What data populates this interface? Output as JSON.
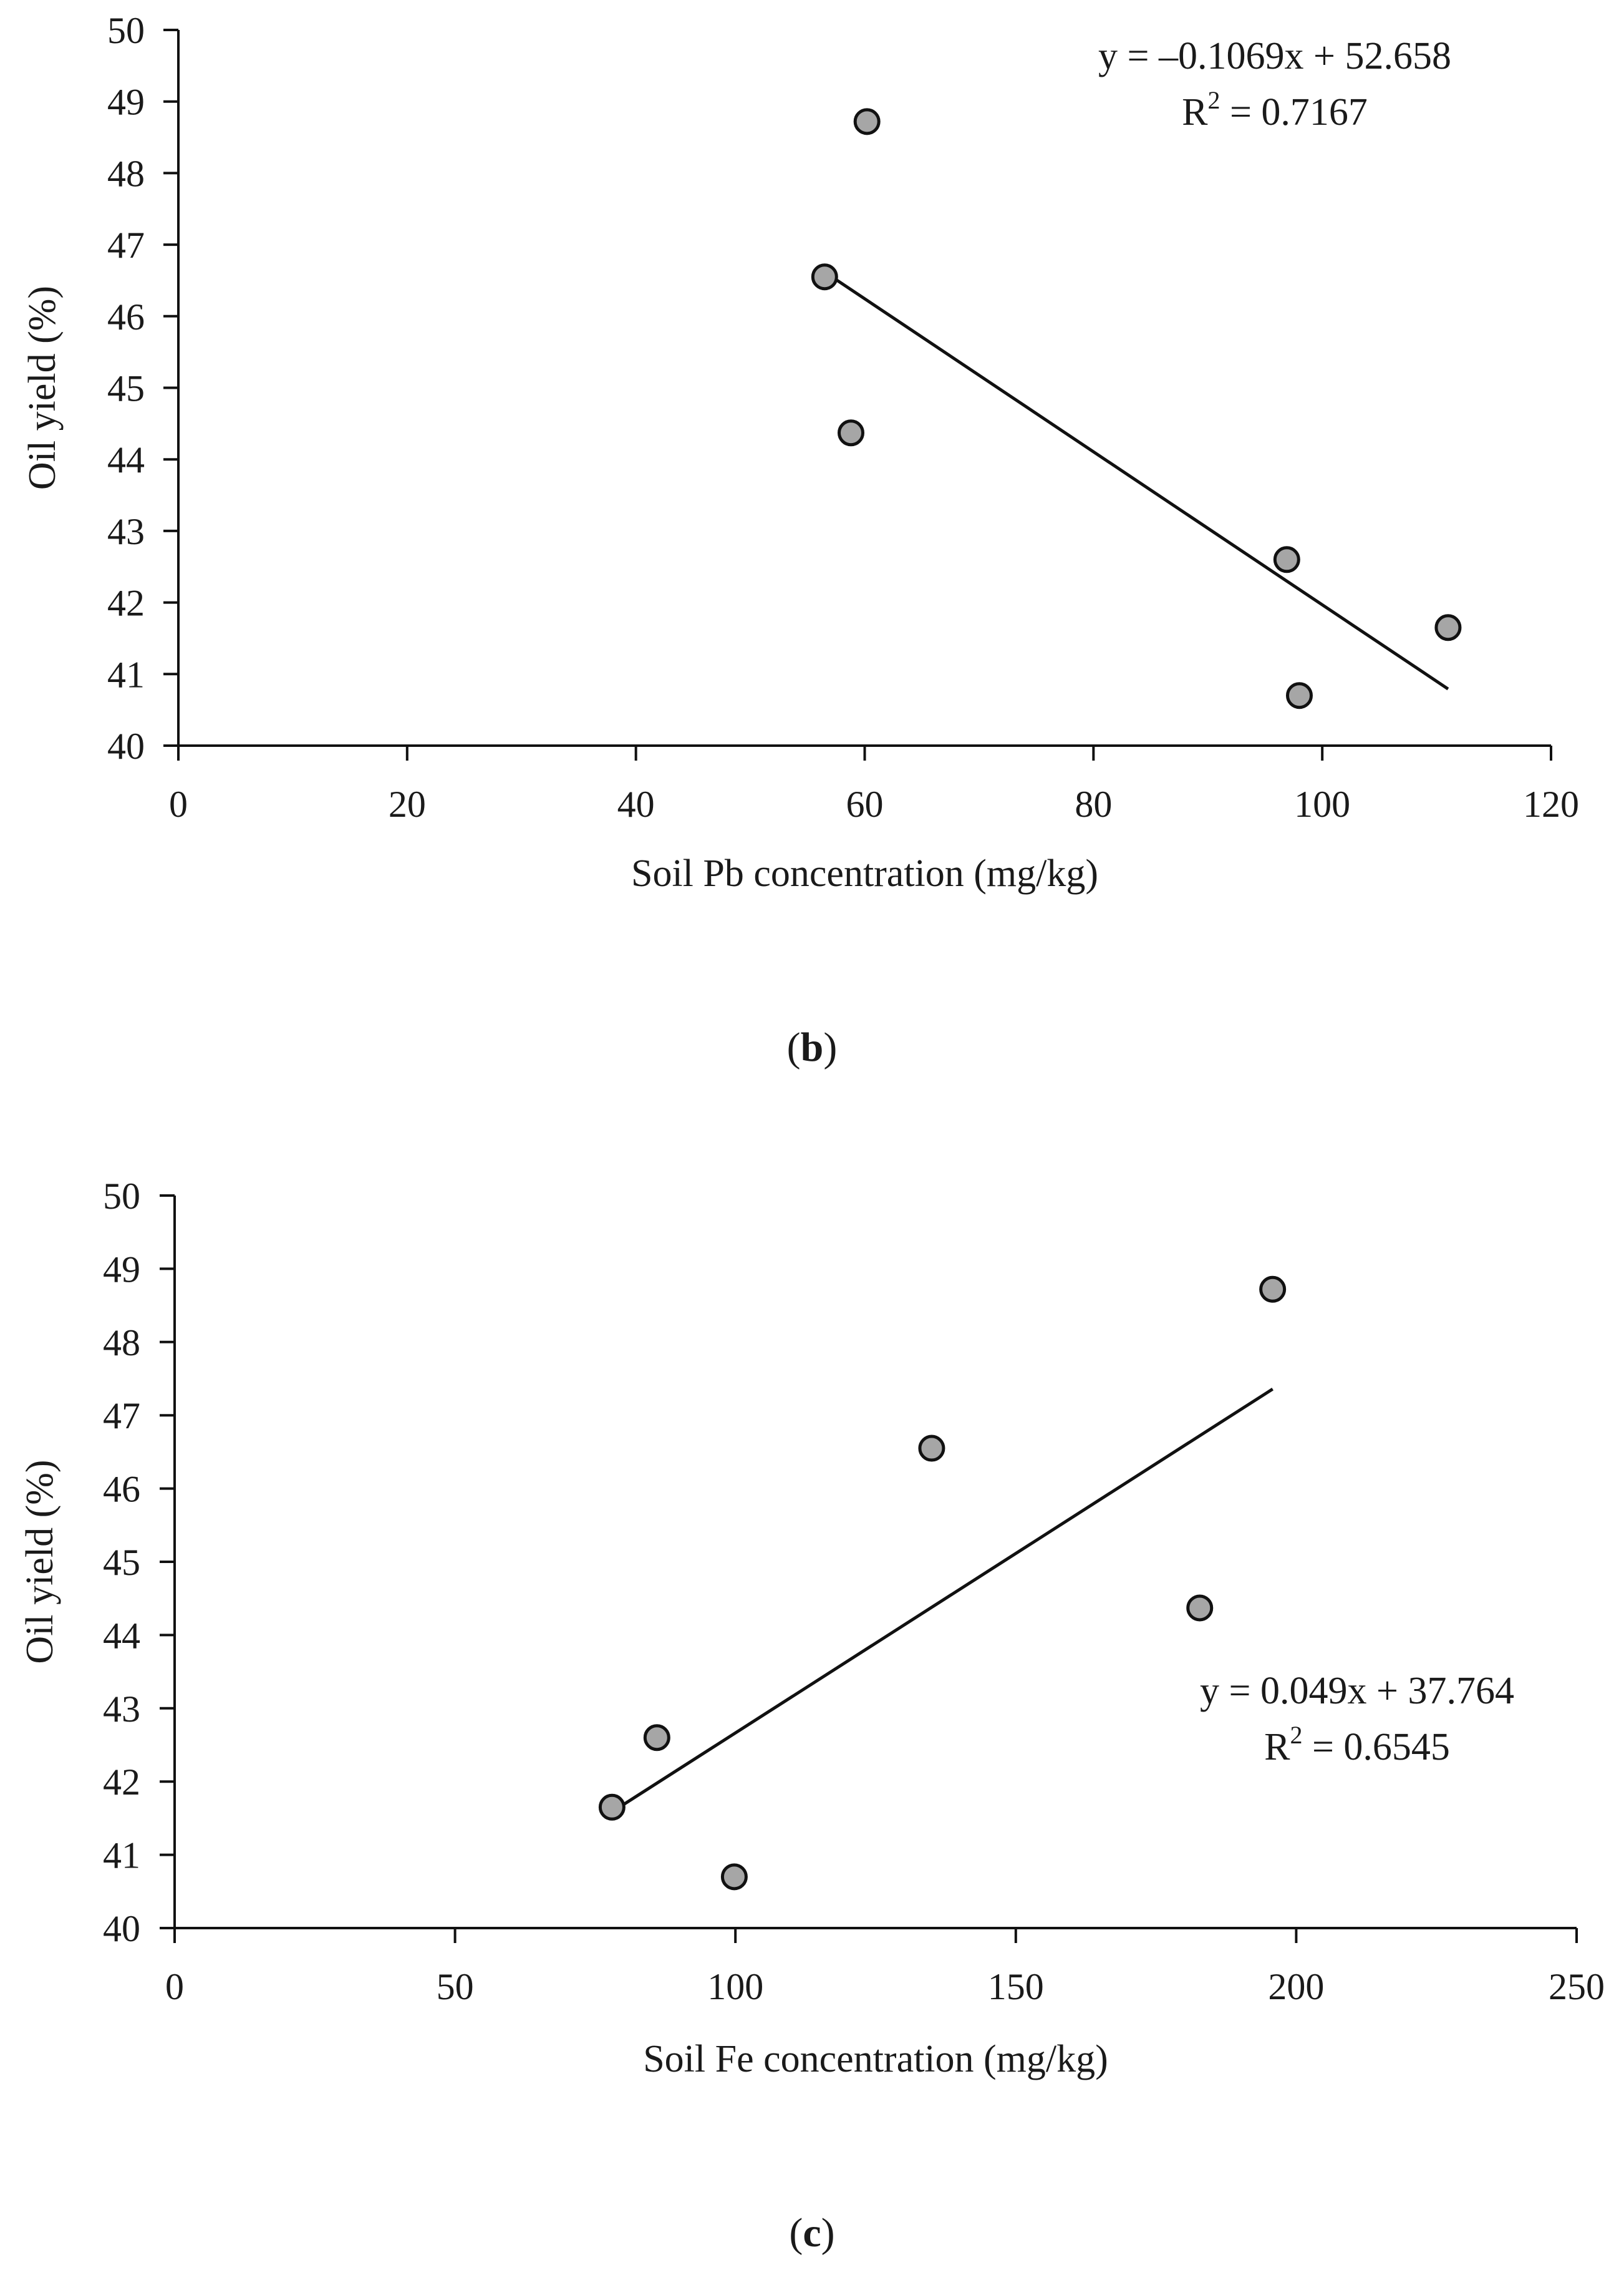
{
  "chart_data": [
    {
      "type": "scatter",
      "panel_label": {
        "open": "(",
        "letter": "b",
        "close": ")"
      },
      "xlabel": "Soil Pb concentration (mg/kg)",
      "ylabel": "Oil yield (%)",
      "xlim": [
        0,
        120
      ],
      "ylim": [
        40,
        50
      ],
      "xticks": [
        0,
        20,
        40,
        60,
        80,
        100,
        120
      ],
      "yticks": [
        40,
        41,
        42,
        43,
        44,
        45,
        46,
        47,
        48,
        49,
        50
      ],
      "points": [
        {
          "x": 56.5,
          "y": 46.55
        },
        {
          "x": 58.8,
          "y": 44.37
        },
        {
          "x": 60.2,
          "y": 48.72
        },
        {
          "x": 96.9,
          "y": 42.6
        },
        {
          "x": 98.0,
          "y": 40.7
        },
        {
          "x": 111.0,
          "y": 41.65
        }
      ],
      "trendline": {
        "slope": -0.1069,
        "intercept": 52.658,
        "x_range": [
          56.5,
          111.0
        ]
      },
      "equation": {
        "line1": "y = –0.1069x + 52.658",
        "r2_prefix": "R",
        "r2_sup": "2",
        "r2_suffix": " = 0.7167"
      }
    },
    {
      "type": "scatter",
      "panel_label": {
        "open": "(",
        "letter": "c",
        "close": ")"
      },
      "xlabel": "Soil Fe concentration (mg/kg)",
      "ylabel": "Oil yield (%)",
      "xlim": [
        0,
        250
      ],
      "ylim": [
        40,
        50
      ],
      "xticks": [
        0,
        50,
        100,
        150,
        200,
        250
      ],
      "yticks": [
        40,
        41,
        42,
        43,
        44,
        45,
        46,
        47,
        48,
        49,
        50
      ],
      "points": [
        {
          "x": 78.0,
          "y": 41.65
        },
        {
          "x": 86.0,
          "y": 42.6
        },
        {
          "x": 99.8,
          "y": 40.7
        },
        {
          "x": 135.0,
          "y": 46.55
        },
        {
          "x": 182.8,
          "y": 44.37
        },
        {
          "x": 195.8,
          "y": 48.72
        }
      ],
      "trendline": {
        "slope": 0.049,
        "intercept": 37.764,
        "x_range": [
          78.0,
          195.8
        ]
      },
      "equation": {
        "line1": "y = 0.049x + 37.764",
        "r2_prefix": "R",
        "r2_sup": "2",
        "r2_suffix": " = 0.6545"
      }
    }
  ]
}
